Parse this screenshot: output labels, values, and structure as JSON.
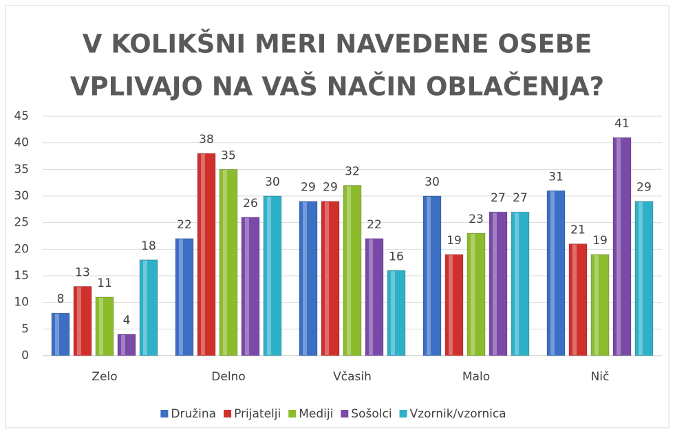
{
  "chart_data": {
    "type": "bar",
    "title": [
      "V KOLIKŠNI MERI NAVEDENE OSEBE",
      "VPLIVAJO NA VAŠ NAČIN OBLAČENJA?"
    ],
    "categories": [
      "Zelo",
      "Delno",
      "Včasih",
      "Malo",
      "Nič"
    ],
    "series": [
      {
        "name": "Družina",
        "color": "#3a6fc4",
        "values": [
          8,
          22,
          29,
          30,
          31
        ]
      },
      {
        "name": "Prijatelji",
        "color": "#d0302c",
        "values": [
          13,
          38,
          29,
          19,
          21
        ]
      },
      {
        "name": "Mediji",
        "color": "#8cbc2c",
        "values": [
          11,
          35,
          32,
          23,
          19
        ]
      },
      {
        "name": "Sošolci",
        "color": "#7a4aa8",
        "values": [
          4,
          26,
          22,
          27,
          41
        ]
      },
      {
        "name": "Vzornik/vzornica",
        "color": "#2eb0c8",
        "values": [
          18,
          30,
          16,
          27,
          29
        ]
      }
    ],
    "ylim": [
      0,
      45
    ],
    "yticks": [
      0,
      5,
      10,
      15,
      20,
      25,
      30,
      35,
      40,
      45
    ],
    "grid": true,
    "legend": "bottom"
  }
}
